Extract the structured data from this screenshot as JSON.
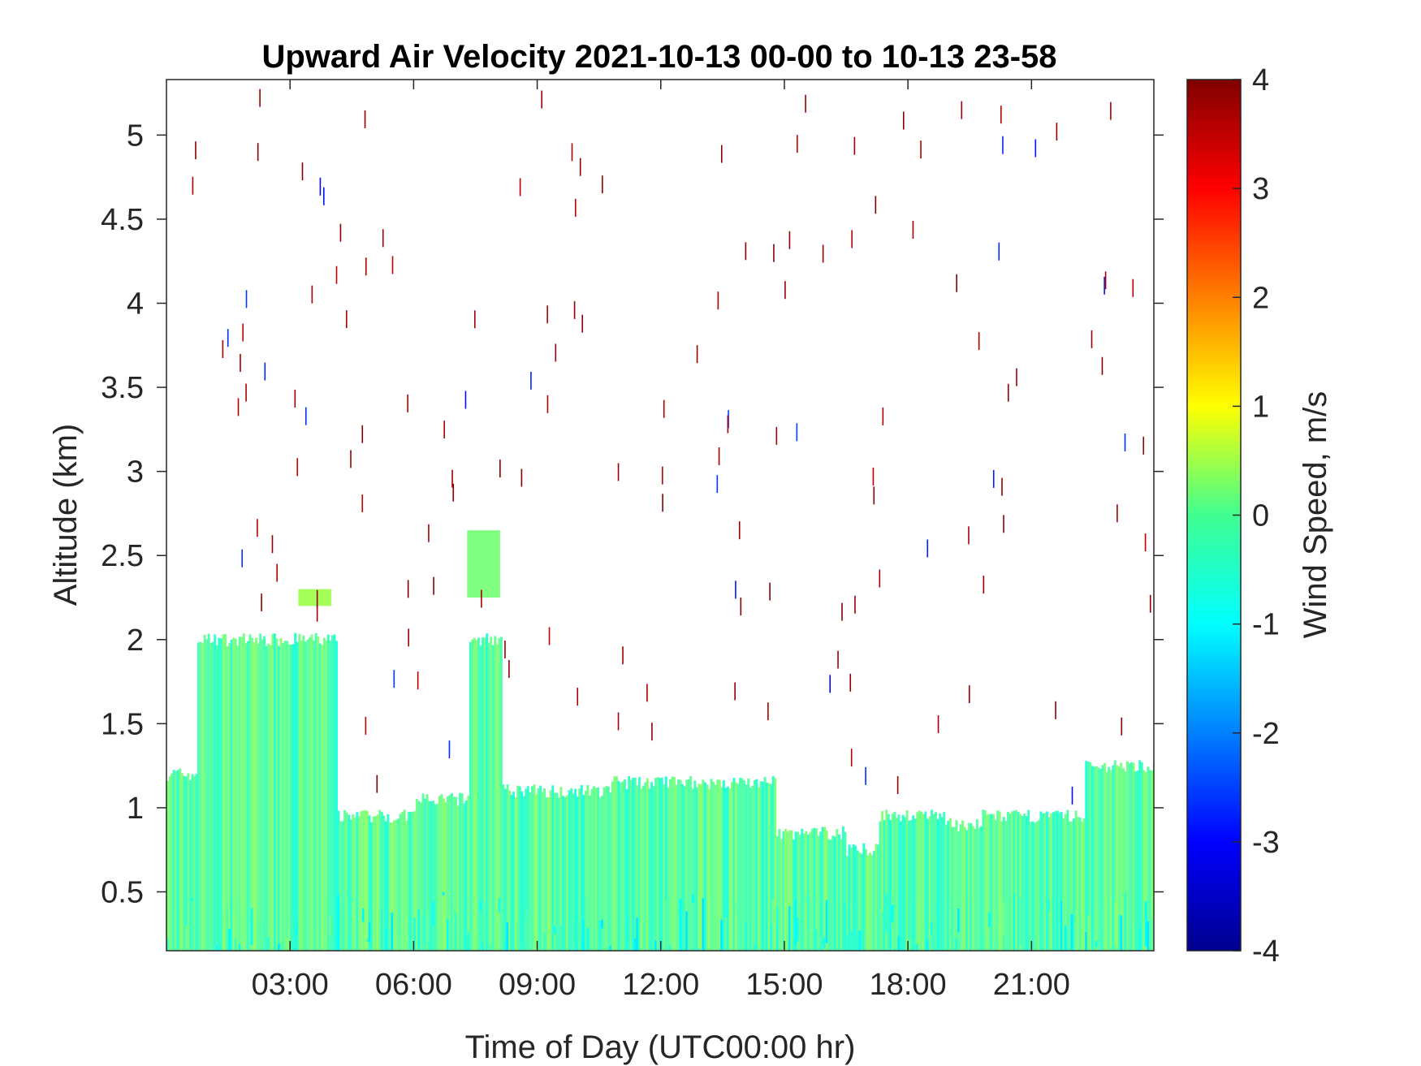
{
  "chart_data": {
    "type": "heatmap",
    "title": "Upward Air Velocity 2021-10-13 00-00 to 10-13 23-58",
    "xlabel": "Time of Day (UTC00:00 hr)",
    "ylabel": "Altitude (km)",
    "colorbar_label": "Wind Speed, m/s",
    "x_unit": "hours UTC",
    "xlim": [
      0.0,
      23.97
    ],
    "ylim": [
      0.15,
      5.33
    ],
    "x_ticks": [
      3,
      6,
      9,
      12,
      15,
      18,
      21
    ],
    "x_tick_labels": [
      "03:00",
      "06:00",
      "09:00",
      "12:00",
      "15:00",
      "18:00",
      "21:00"
    ],
    "y_ticks": [
      0.5,
      1,
      1.5,
      2,
      2.5,
      3,
      3.5,
      4,
      4.5,
      5
    ],
    "y_tick_labels": [
      "0.5",
      "1",
      "1.5",
      "2",
      "2.5",
      "3",
      "3.5",
      "4",
      "4.5",
      "5"
    ],
    "clim": [
      -4,
      4
    ],
    "colorbar_ticks": [
      -4,
      -3,
      -2,
      -1,
      0,
      1,
      2,
      3,
      4
    ],
    "colorbar_tick_labels": [
      "-4",
      "-3",
      "-2",
      "-1",
      "0",
      "1",
      "2",
      "3",
      "4"
    ],
    "colormap": "jet",
    "grid": false,
    "dominant_value_mps": -0.3,
    "data_top_profile": [
      {
        "t": [
          0.0,
          0.75
        ],
        "top_km": 1.2
      },
      {
        "t": [
          0.75,
          4.1
        ],
        "top_km": 2.0
      },
      {
        "t": [
          4.1,
          6.0
        ],
        "top_km": 0.95
      },
      {
        "t": [
          6.0,
          7.3
        ],
        "top_km": 1.05
      },
      {
        "t": [
          7.3,
          8.1
        ],
        "top_km": 2.0
      },
      {
        "t": [
          8.1,
          10.8
        ],
        "top_km": 1.1
      },
      {
        "t": [
          10.8,
          14.8
        ],
        "top_km": 1.15
      },
      {
        "t": [
          14.8,
          16.5
        ],
        "top_km": 0.85
      },
      {
        "t": [
          16.5,
          17.3
        ],
        "top_km": 0.75
      },
      {
        "t": [
          17.3,
          18.9
        ],
        "top_km": 0.95
      },
      {
        "t": [
          18.9,
          19.8
        ],
        "top_km": 0.9
      },
      {
        "t": [
          19.8,
          22.3
        ],
        "top_km": 0.95
      },
      {
        "t": [
          22.3,
          23.97
        ],
        "top_km": 1.25
      }
    ],
    "data_patches": [
      {
        "t": [
          7.3,
          8.1
        ],
        "alt_km": [
          2.25,
          2.65
        ],
        "value_mps": 0.0
      },
      {
        "t": [
          3.2,
          4.0
        ],
        "alt_km": [
          2.2,
          2.3
        ],
        "value_mps": 0.3
      }
    ],
    "scattered_outliers": "sparse single-gate values above the boundary layer, mostly ~+3.5 to +4 m/s with a few near -3 m/s"
  }
}
